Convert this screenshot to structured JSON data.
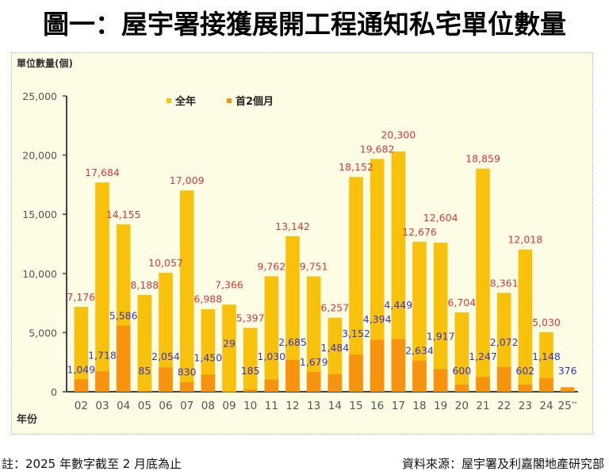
{
  "title": "圖一：屋宇署接獲展開工程通知私宅單位數量",
  "footer": {
    "note": "註：2025 年數字截至 2 月底為止",
    "source": "資料來源：屋宇署及利嘉閣地產研究部"
  },
  "colors": {
    "full_year": "#f8c20c",
    "first_two_months": "#f7930f",
    "full_year_label": "#e0353a",
    "first_two_months_label": "#3535c8",
    "panel_bg": "#fdfde6",
    "axis": "#444444"
  },
  "chart_data": {
    "type": "bar",
    "title": "圖一：屋宇署接獲展開工程通知私宅單位數量",
    "ylabel": "單位數量(個)",
    "xlabel": "年份",
    "ylim": [
      0,
      25000
    ],
    "yticks": [
      0,
      5000,
      10000,
      15000,
      20000,
      25000
    ],
    "ytick_labels": [
      "0",
      "5,000",
      "10,000",
      "15,000",
      "20,000",
      "25,000"
    ],
    "legend_position": "top-center",
    "grid": false,
    "categories": [
      "02",
      "03",
      "04",
      "05",
      "06",
      "07",
      "08",
      "09",
      "10",
      "11",
      "12",
      "13",
      "14",
      "15",
      "16",
      "17",
      "18",
      "19",
      "20",
      "21",
      "22",
      "23",
      "24",
      "25"
    ],
    "category_note_last": "**",
    "series": [
      {
        "name": "全年",
        "values": [
          7176,
          17684,
          14155,
          8188,
          10057,
          17009,
          6988,
          7366,
          5397,
          9762,
          13142,
          9751,
          6257,
          18152,
          19682,
          20300,
          12676,
          12604,
          6704,
          18859,
          8361,
          12018,
          5030,
          null
        ],
        "labels": [
          "7,176",
          "17,684",
          "14,155",
          "8,188",
          "10,057",
          "17,009",
          "6,988",
          "7,366",
          "5,397",
          "9,762",
          "13,142",
          "9,751",
          "6,257",
          "18,152",
          "19,682",
          "20,300",
          "12,676",
          "12,604",
          "6,704",
          "18,859",
          "8,361",
          "12,018",
          "5,030",
          ""
        ]
      },
      {
        "name": "首2個月",
        "values": [
          1049,
          1718,
          5586,
          85,
          2054,
          830,
          1450,
          29,
          185,
          1030,
          2685,
          1679,
          1484,
          3152,
          4394,
          4449,
          2634,
          1917,
          600,
          1247,
          2072,
          602,
          1148,
          376
        ],
        "labels": [
          "1,049",
          "1,718",
          "5,586",
          "85",
          "2,054",
          "830",
          "1,450",
          "29",
          "185",
          "1,030",
          "2,685",
          "1,679",
          "1,484",
          "3,152",
          "4,394",
          "4,449",
          "2,634",
          "1,917",
          "600",
          "1,247",
          "2,072",
          "602",
          "1,148",
          "376"
        ]
      }
    ]
  }
}
